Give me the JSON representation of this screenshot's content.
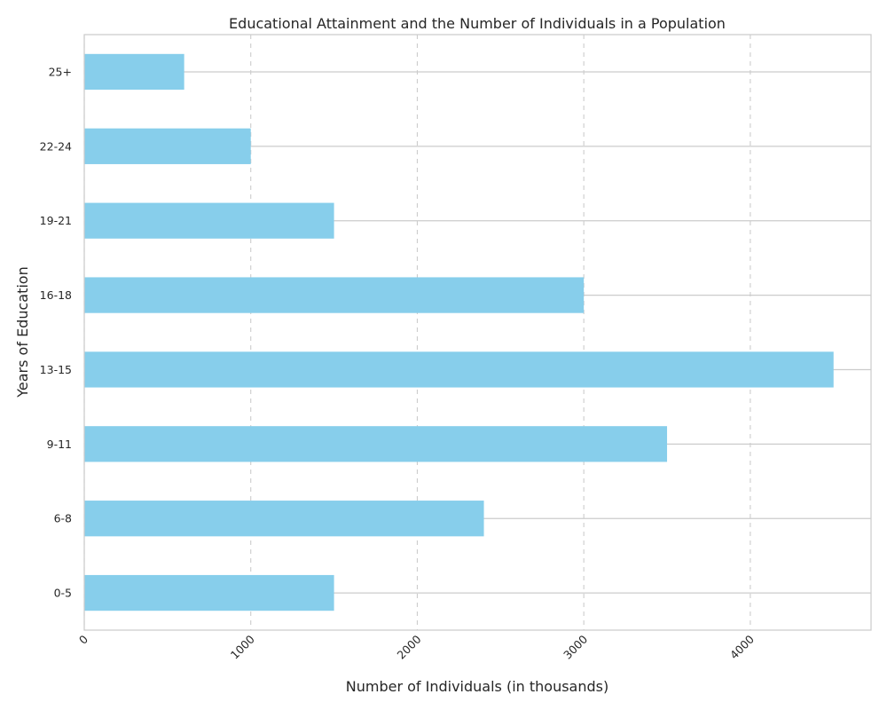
{
  "chart_data": {
    "type": "bar",
    "orientation": "horizontal",
    "title": "Educational Attainment and the Number of Individuals in a Population",
    "xlabel": "Number of Individuals (in thousands)",
    "ylabel": "Years of Education",
    "categories": [
      "0-5",
      "6-8",
      "9-11",
      "13-15",
      "16-18",
      "19-21",
      "22-24",
      "25+"
    ],
    "values": [
      1500,
      2400,
      3500,
      4500,
      3000,
      1500,
      1000,
      600
    ],
    "xlim": [
      0,
      4725
    ],
    "xticks": [
      0,
      1000,
      2000,
      3000,
      4000
    ],
    "xtick_rotation": 45,
    "grid": {
      "vertical": "dashed",
      "horizontal": "solid"
    },
    "bar_color": "#87CEEB",
    "legend": "none"
  }
}
